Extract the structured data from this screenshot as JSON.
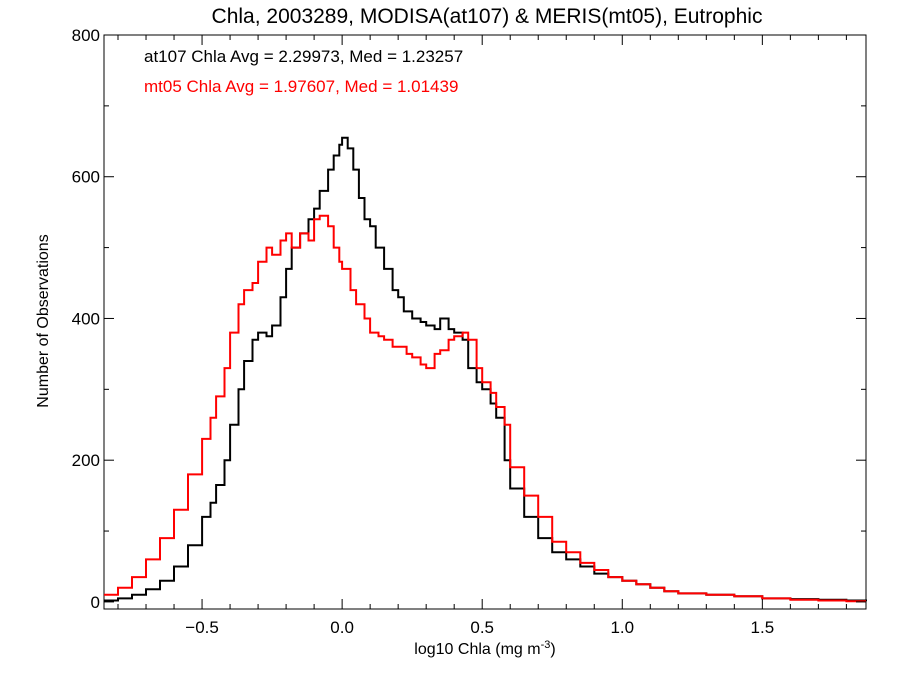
{
  "chart_data": {
    "type": "line",
    "title": "Chla, 2003289, MODISA(at107) & MERIS(mt05), Eutrophic",
    "xlabel": "log10 Chla (mg m",
    "xlabel_sup": "-3",
    "xlabel_end": ")",
    "ylabel": "Number of Observations",
    "xlim": [
      -0.85,
      1.87
    ],
    "ylim": [
      -10,
      800
    ],
    "x_ticks": [
      -0.5,
      0.0,
      0.5,
      1.0,
      1.5
    ],
    "x_tick_labels": [
      "−0.5",
      "0.0",
      "0.5",
      "1.0",
      "1.5"
    ],
    "y_ticks": [
      0,
      200,
      400,
      600,
      800
    ],
    "y_tick_labels": [
      "0",
      "200",
      "400",
      "600",
      "800"
    ],
    "step": "histogram",
    "grid": false,
    "annotations": [
      {
        "text": "at107 Chla Avg = 2.29973, Med = 1.23257",
        "color": "#000000"
      },
      {
        "text": "mt05 Chla Avg = 1.97607, Med = 1.01439",
        "color": "#ff0000"
      }
    ],
    "series": [
      {
        "name": "at107",
        "color": "#000000",
        "x": [
          -0.85,
          -0.8,
          -0.75,
          -0.7,
          -0.65,
          -0.6,
          -0.55,
          -0.5,
          -0.47,
          -0.45,
          -0.42,
          -0.4,
          -0.37,
          -0.35,
          -0.32,
          -0.3,
          -0.27,
          -0.25,
          -0.22,
          -0.2,
          -0.18,
          -0.15,
          -0.12,
          -0.1,
          -0.08,
          -0.05,
          -0.03,
          -0.01,
          0.0,
          0.02,
          0.04,
          0.06,
          0.08,
          0.1,
          0.12,
          0.15,
          0.18,
          0.2,
          0.22,
          0.25,
          0.28,
          0.3,
          0.33,
          0.35,
          0.38,
          0.4,
          0.43,
          0.45,
          0.48,
          0.5,
          0.53,
          0.55,
          0.58,
          0.6,
          0.65,
          0.7,
          0.75,
          0.8,
          0.85,
          0.9,
          0.95,
          1.0,
          1.05,
          1.1,
          1.15,
          1.2,
          1.3,
          1.4,
          1.5,
          1.6,
          1.7,
          1.8,
          1.87
        ],
        "y": [
          2,
          5,
          10,
          18,
          30,
          50,
          80,
          120,
          140,
          165,
          200,
          250,
          300,
          340,
          370,
          380,
          375,
          390,
          430,
          470,
          500,
          520,
          540,
          555,
          580,
          610,
          630,
          645,
          655,
          640,
          610,
          570,
          540,
          530,
          500,
          470,
          440,
          430,
          410,
          400,
          395,
          390,
          385,
          400,
          385,
          380,
          370,
          330,
          310,
          300,
          280,
          260,
          200,
          160,
          120,
          90,
          70,
          60,
          50,
          40,
          35,
          30,
          25,
          20,
          15,
          12,
          10,
          8,
          5,
          4,
          3,
          2,
          1
        ]
      },
      {
        "name": "mt05",
        "color": "#ff0000",
        "x": [
          -0.85,
          -0.8,
          -0.75,
          -0.7,
          -0.65,
          -0.6,
          -0.55,
          -0.5,
          -0.47,
          -0.45,
          -0.42,
          -0.4,
          -0.37,
          -0.35,
          -0.32,
          -0.3,
          -0.27,
          -0.25,
          -0.22,
          -0.2,
          -0.18,
          -0.15,
          -0.12,
          -0.1,
          -0.08,
          -0.05,
          -0.03,
          -0.01,
          0.0,
          0.03,
          0.05,
          0.08,
          0.1,
          0.13,
          0.15,
          0.18,
          0.2,
          0.23,
          0.25,
          0.28,
          0.3,
          0.33,
          0.35,
          0.38,
          0.4,
          0.43,
          0.45,
          0.48,
          0.5,
          0.53,
          0.55,
          0.58,
          0.6,
          0.65,
          0.7,
          0.75,
          0.8,
          0.85,
          0.9,
          0.95,
          1.0,
          1.05,
          1.1,
          1.15,
          1.2,
          1.3,
          1.4,
          1.5,
          1.6,
          1.7,
          1.8,
          1.87
        ],
        "y": [
          10,
          20,
          35,
          60,
          90,
          130,
          180,
          230,
          260,
          290,
          330,
          380,
          420,
          440,
          450,
          480,
          500,
          490,
          510,
          520,
          500,
          520,
          510,
          540,
          545,
          530,
          500,
          480,
          470,
          440,
          420,
          400,
          380,
          375,
          370,
          360,
          360,
          350,
          345,
          335,
          330,
          350,
          355,
          370,
          375,
          380,
          370,
          330,
          310,
          295,
          275,
          250,
          190,
          150,
          120,
          85,
          70,
          55,
          45,
          35,
          30,
          25,
          20,
          15,
          12,
          10,
          8,
          5,
          3,
          2,
          1,
          1
        ]
      }
    ]
  }
}
